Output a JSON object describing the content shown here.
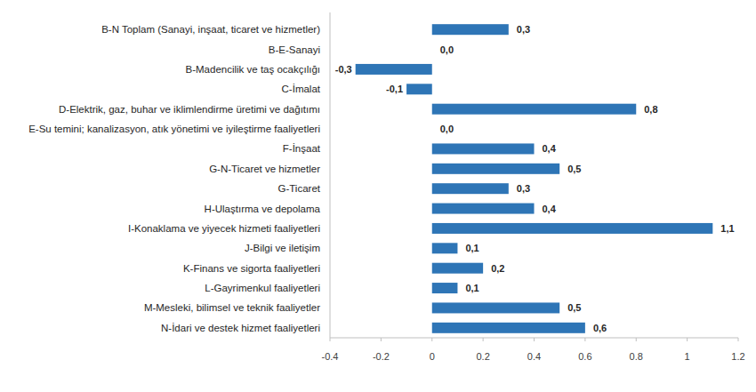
{
  "chart_data": {
    "type": "bar",
    "orientation": "horizontal",
    "categories": [
      "B-N Toplam (Sanayi, inşaat, ticaret ve hizmetler)",
      "B-E-Sanayi",
      "B-Madencilik ve taş ocakçılığı",
      "C-İmalat",
      "D-Elektrik, gaz, buhar ve iklimlendirme üretimi ve dağıtımı",
      "E-Su temini; kanalizasyon, atık yönetimi ve iyileştirme faaliyetleri",
      "F-İnşaat",
      "G-N-Ticaret ve hizmetler",
      "G-Ticaret",
      "H-Ulaştırma ve depolama",
      "I-Konaklama ve yiyecek hizmeti faaliyetleri",
      "J-Bilgi ve iletişim",
      "K-Finans ve sigorta faaliyetleri",
      "L-Gayrimenkul faaliyetleri",
      "M-Mesleki, bilimsel ve teknik faaliyetler",
      "N-İdari ve destek hizmet faaliyetleri"
    ],
    "values": [
      0.3,
      0.0,
      -0.3,
      -0.1,
      0.8,
      0.0,
      0.4,
      0.5,
      0.3,
      0.4,
      1.1,
      0.1,
      0.2,
      0.1,
      0.5,
      0.6
    ],
    "value_labels": [
      "0,3",
      "0,0",
      "-0,3",
      "-0,1",
      "0,8",
      "0,0",
      "0,4",
      "0,5",
      "0,3",
      "0,4",
      "1,1",
      "0,1",
      "0,2",
      "0,1",
      "0,5",
      "0,6"
    ],
    "color": "#2e75b6",
    "xlim": [
      -0.4,
      1.2
    ],
    "xticks": [
      -0.4,
      -0.2,
      0,
      0.2,
      0.4,
      0.6,
      0.8,
      1,
      1.2
    ],
    "data_labels": true,
    "grid": false
  }
}
